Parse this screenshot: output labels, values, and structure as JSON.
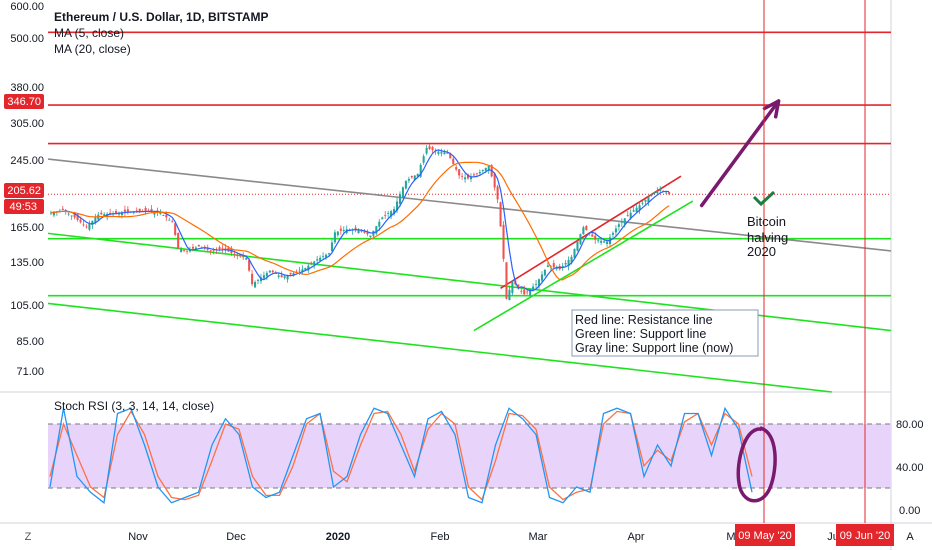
{
  "symbol_title": "Ethereum / U.S. Dollar, 1D, BITSTAMP",
  "indicators": {
    "ma5": "MA (5, close)",
    "ma20": "MA (20, close)"
  },
  "price_axis": {
    "ticks": [
      "600.00",
      "500.00",
      "380.00",
      "305.00",
      "245.00",
      "165.00",
      "135.00",
      "105.00",
      "85.00",
      "71.00"
    ],
    "badges": [
      {
        "label": "346.70",
        "color": "#e3262b"
      },
      {
        "label": "205.62",
        "color": "#e3262b"
      },
      {
        "label": "49:53",
        "color": "#e3262b"
      }
    ]
  },
  "rsi": {
    "title": "Stoch RSI (3, 3, 14, 14, close)",
    "ticks": [
      "80.00",
      "40.00",
      "0.00"
    ],
    "band_color": "#e8d4fb"
  },
  "time_axis": {
    "labels": [
      "Nov",
      "Dec",
      "2020",
      "Feb",
      "Mar",
      "Apr",
      "M",
      "Ju",
      "A"
    ],
    "markers": [
      {
        "label": "09 May '20",
        "color": "#e3262b"
      },
      {
        "label": "09 Jun '20",
        "color": "#e3262b"
      }
    ],
    "corner": "Z"
  },
  "annotations": {
    "halving": [
      "Bitcoin",
      "halving",
      "2020"
    ],
    "legend": [
      "Red line: Resistance line",
      "Green line: Support line",
      "Gray line: Support line (now)"
    ]
  },
  "colors": {
    "candle_up": "#26a69a",
    "candle_down": "#ef5350",
    "ma5": "#2962ff",
    "ma20": "#ff6d00",
    "resistance": "#e3262b",
    "support": "#1fe21f",
    "gray_line": "#8a8a8a",
    "arrow": "#7a1a6e",
    "k_line": "#2196f3",
    "d_line": "#ff7043"
  },
  "chart_data": {
    "type": "candlestick",
    "scale": "log",
    "x_range": [
      "2019-10-09",
      "2020-07-20"
    ],
    "y_range": [
      65,
      640
    ],
    "price_series": [
      [
        "2019-10-10",
        185
      ],
      [
        "2019-10-14",
        188
      ],
      [
        "2019-10-18",
        180
      ],
      [
        "2019-10-22",
        170
      ],
      [
        "2019-10-26",
        183
      ],
      [
        "2019-10-30",
        184
      ],
      [
        "2019-11-04",
        186
      ],
      [
        "2019-11-08",
        186
      ],
      [
        "2019-11-12",
        187
      ],
      [
        "2019-11-16",
        185
      ],
      [
        "2019-11-20",
        175
      ],
      [
        "2019-11-22",
        150
      ],
      [
        "2019-11-25",
        148
      ],
      [
        "2019-11-29",
        152
      ],
      [
        "2019-12-03",
        148
      ],
      [
        "2019-12-07",
        150
      ],
      [
        "2019-12-11",
        145
      ],
      [
        "2019-12-15",
        142
      ],
      [
        "2019-12-17",
        122
      ],
      [
        "2019-12-19",
        125
      ],
      [
        "2019-12-23",
        132
      ],
      [
        "2019-12-27",
        127
      ],
      [
        "2019-12-31",
        130
      ],
      [
        "2020-01-04",
        134
      ],
      [
        "2020-01-08",
        141
      ],
      [
        "2020-01-12",
        146
      ],
      [
        "2020-01-14",
        165
      ],
      [
        "2020-01-18",
        168
      ],
      [
        "2020-01-22",
        167
      ],
      [
        "2020-01-26",
        162
      ],
      [
        "2020-01-30",
        180
      ],
      [
        "2020-02-03",
        189
      ],
      [
        "2020-02-07",
        223
      ],
      [
        "2020-02-11",
        232
      ],
      [
        "2020-02-14",
        270
      ],
      [
        "2020-02-17",
        265
      ],
      [
        "2020-02-21",
        262
      ],
      [
        "2020-02-25",
        230
      ],
      [
        "2020-02-28",
        226
      ],
      [
        "2020-03-02",
        232
      ],
      [
        "2020-03-06",
        243
      ],
      [
        "2020-03-09",
        200
      ],
      [
        "2020-03-12",
        112
      ],
      [
        "2020-03-14",
        124
      ],
      [
        "2020-03-18",
        115
      ],
      [
        "2020-03-22",
        122
      ],
      [
        "2020-03-26",
        136
      ],
      [
        "2020-03-30",
        133
      ],
      [
        "2020-04-03",
        143
      ],
      [
        "2020-04-07",
        170
      ],
      [
        "2020-04-11",
        158
      ],
      [
        "2020-04-15",
        156
      ],
      [
        "2020-04-19",
        173
      ],
      [
        "2020-04-23",
        185
      ],
      [
        "2020-04-27",
        196
      ],
      [
        "2020-04-30",
        206
      ],
      [
        "2020-05-03",
        212
      ],
      [
        "2020-05-06",
        206
      ]
    ],
    "horizontal_levels": {
      "resistance": [
        530,
        346.7,
        277
      ],
      "support": [
        159,
        114
      ]
    },
    "trend_lines": {
      "resistance": [
        [
          "2020-03-10",
          119
        ],
        [
          "2020-05-10",
          229
        ]
      ],
      "support": [
        [
          "2020-03-01",
          93
        ],
        [
          "2020-05-14",
          198
        ]
      ],
      "gray_support_now": [
        [
          "2019-10-09",
          253
        ],
        [
          "2020-07-20",
          148
        ]
      ],
      "long_green_1": [
        [
          "2019-10-09",
          164
        ],
        [
          "2020-07-20",
          93
        ]
      ],
      "long_green_2": [
        [
          "2019-10-09",
          109
        ],
        [
          "2020-06-30",
          65
        ]
      ]
    },
    "projection_arrow": [
      [
        "2020-05-17",
        193
      ],
      [
        "2020-06-12",
        355
      ]
    ],
    "stoch_rsi": {
      "k": [
        20,
        95,
        30,
        15,
        5,
        90,
        95,
        60,
        20,
        5,
        10,
        15,
        60,
        85,
        70,
        20,
        10,
        15,
        50,
        85,
        90,
        20,
        30,
        70,
        95,
        90,
        60,
        30,
        85,
        92,
        70,
        10,
        5,
        60,
        95,
        85,
        70,
        10,
        5,
        20,
        15,
        90,
        95,
        90,
        30,
        60,
        40,
        90,
        90,
        50,
        95,
        75,
        15
      ],
      "d": [
        30,
        80,
        50,
        20,
        10,
        70,
        92,
        70,
        30,
        10,
        8,
        12,
        45,
        80,
        75,
        30,
        12,
        12,
        40,
        80,
        90,
        35,
        25,
        60,
        90,
        92,
        70,
        35,
        75,
        90,
        80,
        20,
        8,
        45,
        90,
        88,
        75,
        20,
        8,
        15,
        18,
        80,
        92,
        90,
        40,
        55,
        45,
        82,
        90,
        60,
        90,
        80,
        30
      ],
      "band": [
        20,
        80
      ]
    }
  }
}
